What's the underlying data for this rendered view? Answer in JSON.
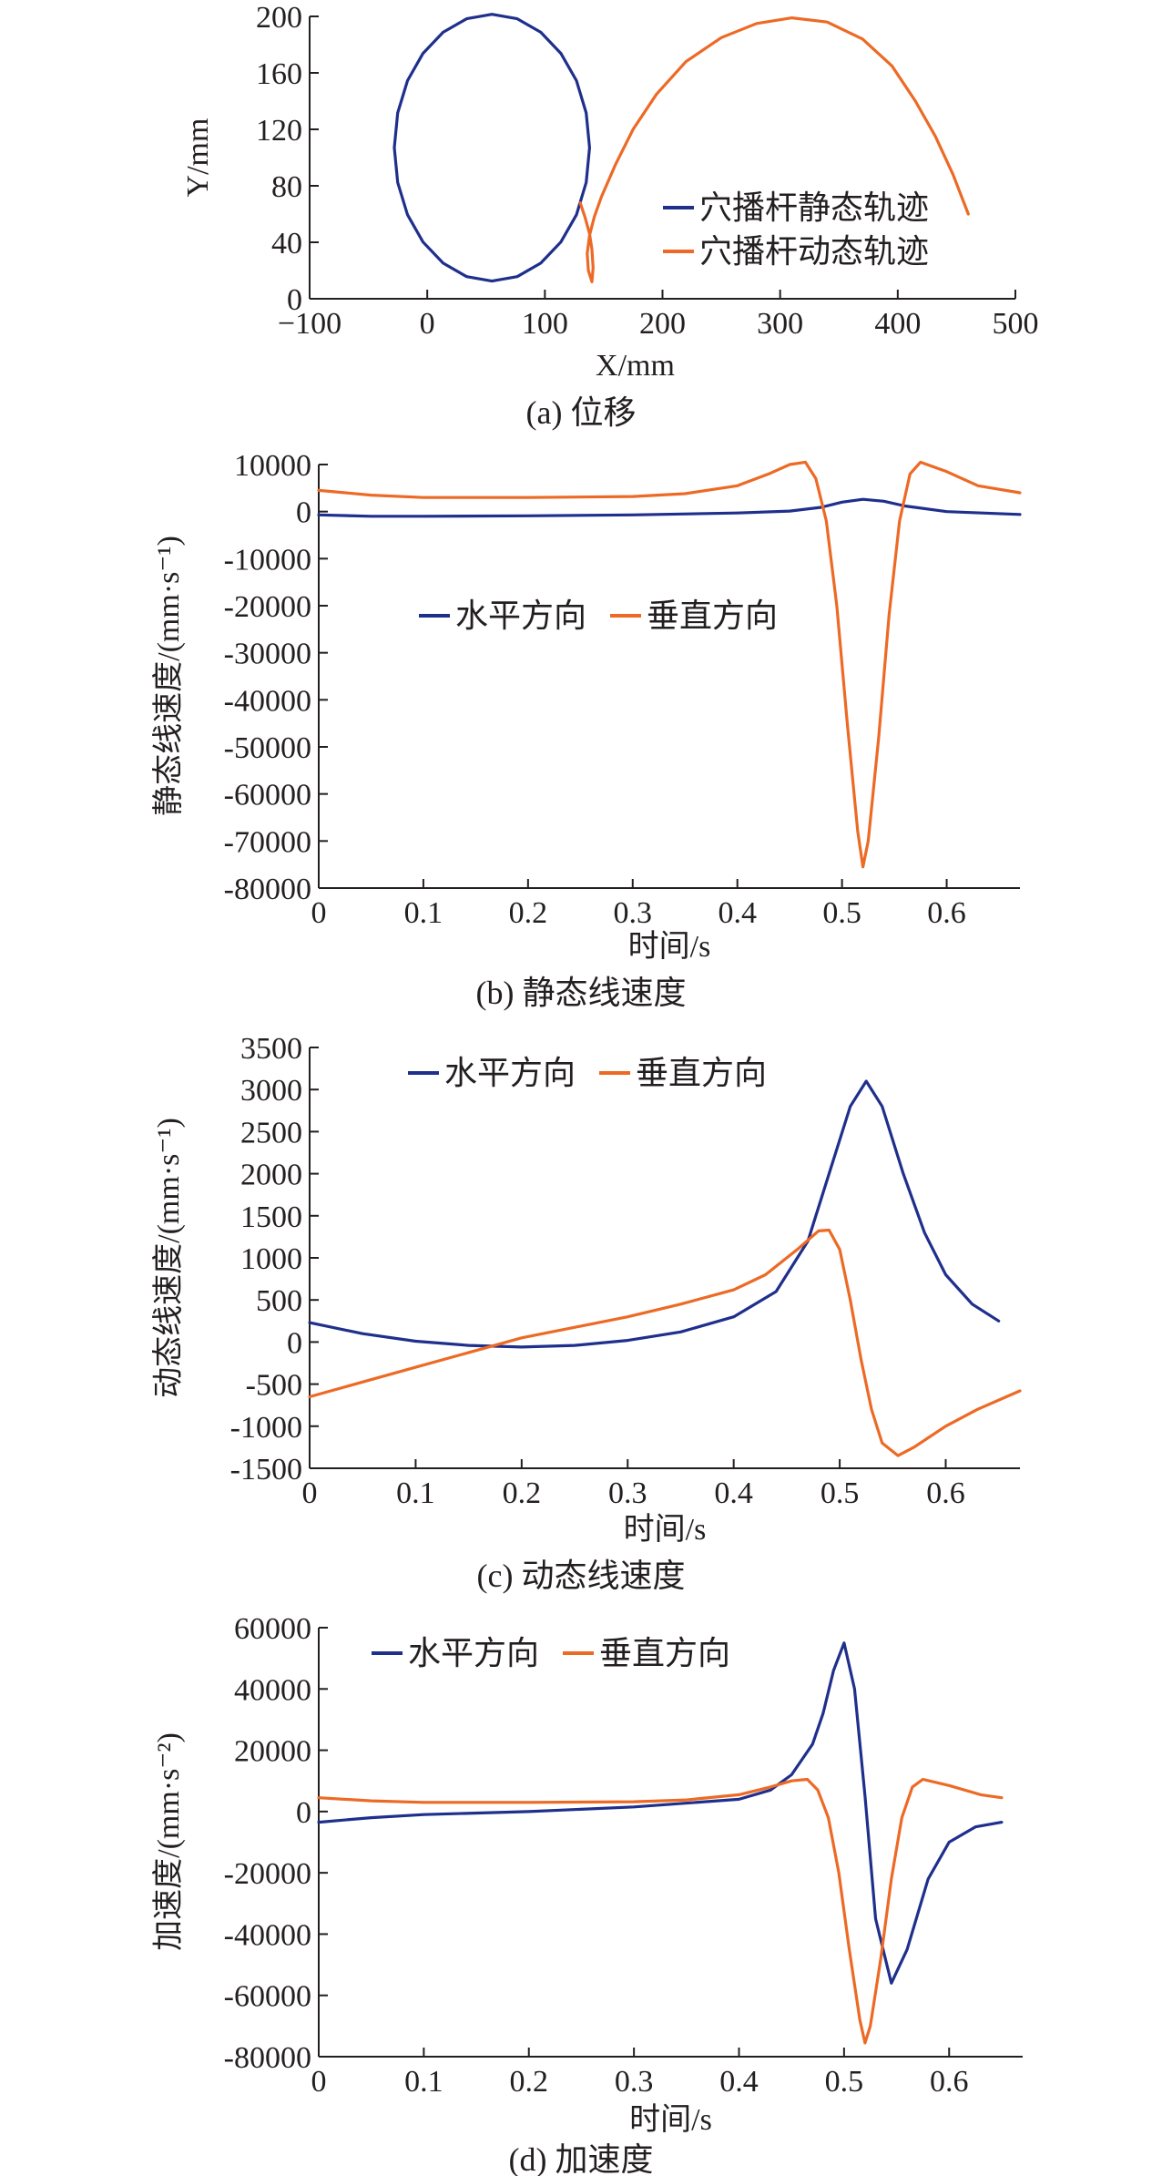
{
  "colors": {
    "blue": "#1f2f8c",
    "orange": "#ec6a25",
    "axis": "#231f20"
  },
  "chart_data": [
    {
      "type": "line",
      "caption": "(a) 位移",
      "xlabel": "X/mm",
      "ylabel": "Y/mm",
      "xlim": [
        -100,
        500
      ],
      "ylim": [
        0,
        200
      ],
      "xticks": [
        -100,
        0,
        100,
        200,
        300,
        400,
        500
      ],
      "yticks": [
        0,
        40,
        80,
        120,
        160,
        200
      ],
      "xtick_labels": [
        "−100",
        "0",
        "100",
        "200",
        "300",
        "400",
        "500"
      ],
      "ytick_labels": [
        "0",
        "40",
        "80",
        "120",
        "160",
        "200"
      ],
      "legend": [
        "穴播杆静态轨迹",
        "穴播杆动态轨迹"
      ],
      "series": [
        {
          "name": "穴播杆静态轨迹",
          "color": "blue",
          "x": [
            138,
            135.1,
            126.8,
            113.6,
            96.5,
            76.5,
            55,
            33.5,
            13.5,
            -3.6,
            -16.8,
            -25.1,
            -28,
            -25.1,
            -16.8,
            -3.6,
            13.5,
            33.5,
            55,
            76.5,
            96.5,
            113.6,
            126.8,
            135.1,
            138
          ],
          "y": [
            107,
            131.6,
            154.5,
            173.8,
            188.8,
            198.3,
            201.5,
            198.3,
            188.8,
            173.8,
            154.5,
            131.6,
            107,
            82.4,
            59.5,
            40.2,
            25.2,
            15.7,
            12.5,
            15.7,
            25.2,
            40.2,
            59.5,
            82.4,
            107
          ]
        },
        {
          "name": "穴播杆动态轨迹",
          "color": "orange",
          "x": [
            130,
            134,
            138,
            140,
            141,
            140,
            137,
            136,
            138,
            142,
            148,
            160,
            175,
            195,
            220,
            250,
            280,
            310,
            340,
            370,
            395,
            415,
            432,
            447,
            460
          ],
          "y": [
            68,
            58,
            46,
            35,
            22,
            12,
            20,
            32,
            45,
            58,
            72,
            95,
            120,
            145,
            168,
            185,
            195,
            199,
            196,
            184,
            165,
            140,
            115,
            88,
            60
          ]
        }
      ]
    },
    {
      "type": "line",
      "caption": "(b) 静态线速度",
      "xlabel": "时间/s",
      "ylabel": "静态线速度/(mm·s⁻¹)",
      "xlim": [
        0,
        0.67
      ],
      "ylim": [
        -80000,
        10000
      ],
      "xticks": [
        0,
        0.1,
        0.2,
        0.3,
        0.4,
        0.5,
        0.6
      ],
      "yticks": [
        10000,
        0,
        -10000,
        -20000,
        -30000,
        -40000,
        -50000,
        -60000,
        -70000,
        -80000
      ],
      "xtick_labels": [
        "0",
        "0.1",
        "0.2",
        "0.3",
        "0.4",
        "0.5",
        "0.6"
      ],
      "ytick_labels": [
        "10000",
        "0",
        "-10000",
        "-20000",
        "-30000",
        "-40000",
        "-50000",
        "-60000",
        "-70000",
        "-80000"
      ],
      "legend": [
        "水平方向",
        "垂直方向"
      ],
      "series": [
        {
          "name": "水平方向",
          "color": "blue",
          "x": [
            0,
            0.05,
            0.1,
            0.2,
            0.3,
            0.4,
            0.45,
            0.48,
            0.5,
            0.52,
            0.54,
            0.56,
            0.6,
            0.67
          ],
          "y": [
            -700,
            -1000,
            -1000,
            -900,
            -700,
            -300,
            100,
            900,
            2000,
            2600,
            2200,
            1200,
            0,
            -600
          ]
        },
        {
          "name": "垂直方向",
          "color": "orange",
          "x": [
            0,
            0.05,
            0.1,
            0.2,
            0.3,
            0.35,
            0.4,
            0.43,
            0.45,
            0.465,
            0.475,
            0.485,
            0.495,
            0.505,
            0.515,
            0.52,
            0.525,
            0.535,
            0.545,
            0.555,
            0.565,
            0.575,
            0.6,
            0.63,
            0.67
          ],
          "y": [
            4500,
            3500,
            3000,
            3000,
            3200,
            3800,
            5500,
            8000,
            10000,
            10500,
            7000,
            -2000,
            -20000,
            -45000,
            -68000,
            -75500,
            -70000,
            -48000,
            -22000,
            -2000,
            8000,
            10500,
            8500,
            5500,
            4000
          ]
        }
      ]
    },
    {
      "type": "line",
      "caption": "(c) 动态线速度",
      "xlabel": "时间/s",
      "ylabel": "动态线速度/(mm·s⁻¹)",
      "xlim": [
        0,
        0.67
      ],
      "ylim": [
        -1500,
        3500
      ],
      "xticks": [
        0,
        0.1,
        0.2,
        0.3,
        0.4,
        0.5,
        0.6
      ],
      "yticks": [
        3500,
        3000,
        2500,
        2000,
        1500,
        1000,
        500,
        0,
        -500,
        -1000,
        -1500
      ],
      "xtick_labels": [
        "0",
        "0.1",
        "0.2",
        "0.3",
        "0.4",
        "0.5",
        "0.6"
      ],
      "ytick_labels": [
        "3500",
        "3000",
        "2500",
        "2000",
        "1500",
        "1000",
        "500",
        "0",
        "-500",
        "-1000",
        "-1500"
      ],
      "legend": [
        "水平方向",
        "垂直方向"
      ],
      "series": [
        {
          "name": "水平方向",
          "color": "blue",
          "x": [
            0,
            0.05,
            0.1,
            0.15,
            0.2,
            0.25,
            0.3,
            0.35,
            0.4,
            0.44,
            0.47,
            0.49,
            0.51,
            0.525,
            0.54,
            0.56,
            0.58,
            0.6,
            0.625,
            0.65
          ],
          "y": [
            230,
            100,
            10,
            -40,
            -60,
            -40,
            20,
            120,
            300,
            600,
            1200,
            2000,
            2800,
            3100,
            2800,
            2000,
            1300,
            800,
            450,
            250
          ]
        },
        {
          "name": "垂直方向",
          "color": "orange",
          "x": [
            0,
            0.1,
            0.2,
            0.3,
            0.35,
            0.4,
            0.43,
            0.46,
            0.48,
            0.49,
            0.5,
            0.51,
            0.52,
            0.53,
            0.54,
            0.555,
            0.57,
            0.6,
            0.63,
            0.67
          ],
          "y": [
            -650,
            -300,
            50,
            300,
            450,
            620,
            800,
            1100,
            1320,
            1330,
            1100,
            500,
            -200,
            -800,
            -1200,
            -1350,
            -1250,
            -1000,
            -800,
            -580
          ]
        }
      ]
    },
    {
      "type": "line",
      "caption": "(d) 加速度",
      "xlabel": "时间/s",
      "ylabel": "加速度/(mm·s⁻²)",
      "xlim": [
        0,
        0.67
      ],
      "ylim": [
        -80000,
        60000
      ],
      "xticks": [
        0,
        0.1,
        0.2,
        0.3,
        0.4,
        0.5,
        0.6
      ],
      "yticks": [
        60000,
        40000,
        20000,
        0,
        -20000,
        -40000,
        -60000,
        -80000
      ],
      "xtick_labels": [
        "0",
        "0.1",
        "0.2",
        "0.3",
        "0.4",
        "0.5",
        "0.6"
      ],
      "ytick_labels": [
        "60000",
        "40000",
        "20000",
        "0",
        "-20000",
        "-40000",
        "-60000",
        "-80000"
      ],
      "legend": [
        "水平方向",
        "垂直方向"
      ],
      "series": [
        {
          "name": "水平方向",
          "color": "blue",
          "x": [
            0,
            0.05,
            0.1,
            0.2,
            0.3,
            0.4,
            0.43,
            0.45,
            0.47,
            0.48,
            0.49,
            0.5,
            0.51,
            0.52,
            0.53,
            0.545,
            0.56,
            0.58,
            0.6,
            0.625,
            0.65
          ],
          "y": [
            -3500,
            -2000,
            -1000,
            0,
            1500,
            4000,
            7000,
            12000,
            22000,
            32000,
            46000,
            55000,
            40000,
            5000,
            -35000,
            -56000,
            -45000,
            -22000,
            -10000,
            -5000,
            -3500
          ]
        },
        {
          "name": "垂直方向",
          "color": "orange",
          "x": [
            0,
            0.05,
            0.1,
            0.2,
            0.3,
            0.35,
            0.4,
            0.43,
            0.45,
            0.465,
            0.475,
            0.485,
            0.495,
            0.505,
            0.515,
            0.52,
            0.525,
            0.535,
            0.545,
            0.555,
            0.565,
            0.575,
            0.6,
            0.63,
            0.65
          ],
          "y": [
            4500,
            3500,
            3000,
            3000,
            3200,
            3800,
            5500,
            8000,
            10000,
            10500,
            7000,
            -2000,
            -20000,
            -45000,
            -68000,
            -75500,
            -70000,
            -48000,
            -22000,
            -2000,
            8000,
            10500,
            8500,
            5500,
            4500
          ]
        }
      ]
    }
  ]
}
